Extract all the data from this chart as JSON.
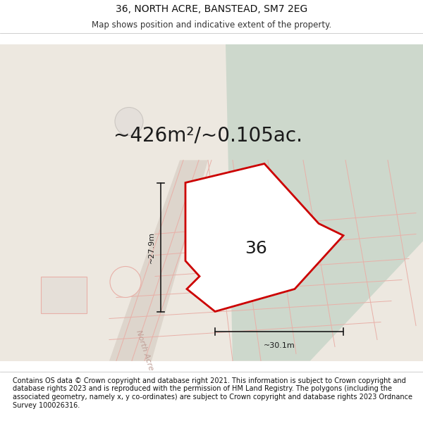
{
  "title_line1": "36, NORTH ACRE, BANSTEAD, SM7 2EG",
  "title_line2": "Map shows position and indicative extent of the property.",
  "area_text": "~426m²/~0.105ac.",
  "number_label": "36",
  "dim_vertical": "~27.9m",
  "dim_horizontal": "~30.1m",
  "footer_text": "Contains OS data © Crown copyright and database right 2021. This information is subject to Crown copyright and database rights 2023 and is reproduced with the permission of HM Land Registry. The polygons (including the associated geometry, namely x, y co-ordinates) are subject to Crown copyright and database rights 2023 Ordnance Survey 100026316.",
  "bg_color": "#ede8e0",
  "green_area": "#cdd8cc",
  "property_fill": "#ffffff",
  "property_edge": "#cc0000",
  "dim_line_color": "#1a1a1a",
  "road_line_color": "#e8b0a8",
  "plot_line_color": "#e8b0a8",
  "road_fill": "#e8ddd6",
  "title_fontsize": 10,
  "subtitle_fontsize": 8.5,
  "area_fontsize": 20,
  "number_fontsize": 18,
  "dim_fontsize": 8,
  "footer_fontsize": 7
}
